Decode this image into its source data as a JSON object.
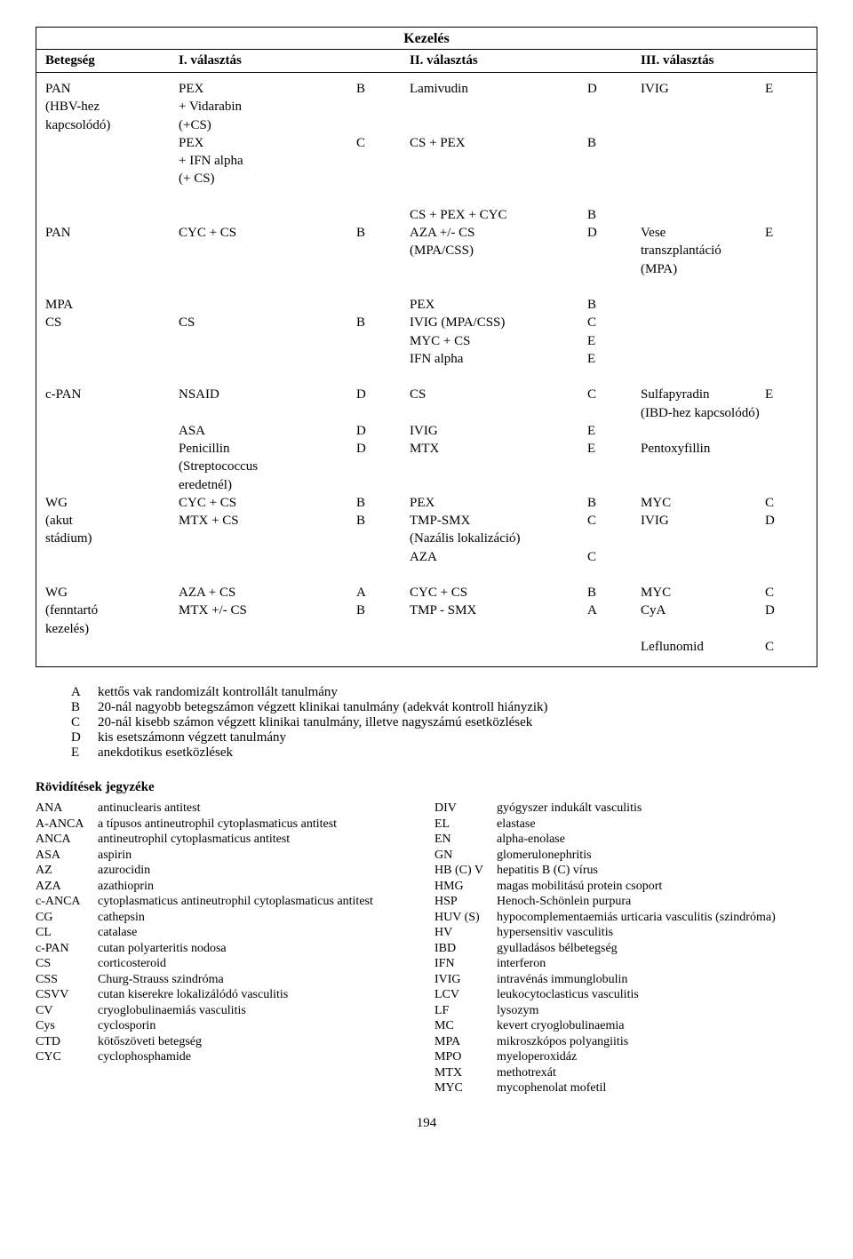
{
  "title": "Kezelés",
  "page_number": "194",
  "headers": [
    "Betegség",
    "I. választás",
    "",
    "II. választás",
    "",
    "III. választás",
    ""
  ],
  "rows": [
    [
      "PAN",
      "PEX",
      "B",
      "Lamivudin",
      "D",
      "IVIG",
      "E"
    ],
    [
      "(HBV-hez",
      "+ Vidarabin",
      "",
      "",
      "",
      "",
      ""
    ],
    [
      "kapcsolódó)",
      "(+CS)",
      "",
      "",
      "",
      "",
      ""
    ],
    [
      "",
      "PEX",
      "C",
      "CS + PEX",
      "B",
      "",
      ""
    ],
    [
      "",
      "+ IFN alpha",
      "",
      "",
      "",
      "",
      ""
    ],
    [
      "",
      "(+ CS)",
      "",
      "",
      "",
      "",
      ""
    ],
    [
      "",
      "",
      "",
      "",
      "",
      "",
      ""
    ],
    [
      "",
      "",
      "",
      "CS + PEX + CYC",
      "B",
      "",
      ""
    ],
    [
      "PAN",
      "CYC + CS",
      "B",
      "AZA +/- CS",
      "D",
      "Vese",
      "E"
    ],
    [
      "",
      "",
      "",
      "(MPA/CSS)",
      "",
      "transzplantáció",
      ""
    ],
    [
      "",
      "",
      "",
      "",
      "",
      "(MPA)",
      ""
    ],
    [
      "",
      "",
      "",
      "",
      "",
      "",
      ""
    ],
    [
      "MPA",
      "",
      "",
      "PEX",
      "B",
      "",
      ""
    ],
    [
      "CS",
      "CS",
      "B",
      "IVIG (MPA/CSS)",
      "C",
      "",
      ""
    ],
    [
      "",
      "",
      "",
      "MYC + CS",
      "E",
      "",
      ""
    ],
    [
      "",
      "",
      "",
      "IFN alpha",
      "E",
      "",
      ""
    ],
    [
      "",
      "",
      "",
      "",
      "",
      "",
      ""
    ],
    [
      "c-PAN",
      "NSAID",
      "D",
      "CS",
      "C",
      "Sulfapyradin",
      "E"
    ],
    [
      "",
      "",
      "",
      "",
      "",
      "(IBD-hez kapcsolódó)",
      ""
    ],
    [
      "",
      "ASA",
      "D",
      "IVIG",
      "E",
      "",
      ""
    ],
    [
      "",
      "Penicillin",
      "D",
      "MTX",
      "E",
      "Pentoxyfillin",
      ""
    ],
    [
      "",
      "(Streptococcus",
      "",
      "",
      "",
      "",
      ""
    ],
    [
      "",
      "eredetnél)",
      "",
      "",
      "",
      "",
      ""
    ],
    [
      "WG",
      "CYC + CS",
      "B",
      "PEX",
      "B",
      "MYC",
      "C"
    ],
    [
      "(akut",
      "MTX + CS",
      "B",
      "TMP-SMX",
      "C",
      "IVIG",
      "D"
    ],
    [
      "stádium)",
      "",
      "",
      "(Nazális lokalizáció)",
      "",
      "",
      ""
    ],
    [
      "",
      "",
      "",
      "AZA",
      "C",
      "",
      ""
    ],
    [
      "",
      "",
      "",
      "",
      "",
      "",
      ""
    ],
    [
      "WG",
      "AZA + CS",
      "A",
      "CYC + CS",
      "B",
      "MYC",
      "C"
    ],
    [
      "(fenntartó",
      "MTX +/- CS",
      "B",
      "TMP - SMX",
      "A",
      "CyA",
      "D"
    ],
    [
      "kezelés)",
      "",
      "",
      "",
      "",
      "",
      ""
    ],
    [
      "",
      "",
      "",
      "",
      "",
      "Leflunomid",
      "C"
    ]
  ],
  "legend": [
    [
      "A",
      "kettős vak randomizált kontrollált tanulmány"
    ],
    [
      "B",
      "20-nál nagyobb betegszámon végzett klinikai tanulmány (adekvát kontroll hiányzik)"
    ],
    [
      "C",
      "20-nál kisebb számon végzett klinikai tanulmány, illetve nagyszámú esetközlések"
    ],
    [
      "D",
      "kis esetszámonn végzett tanulmány"
    ],
    [
      "E",
      "anekdotikus esetközlések"
    ]
  ],
  "abbrev_title": "Rövidítések jegyzéke",
  "abbrev_left": [
    [
      "ANA",
      "antinuclearis antitest"
    ],
    [
      "A-ANCA",
      "a típusos antineutrophil cytoplasmaticus antitest"
    ],
    [
      "ANCA",
      "antineutrophil cytoplasmaticus antitest"
    ],
    [
      "ASA",
      "aspirin"
    ],
    [
      "AZ",
      "azurocidin"
    ],
    [
      "AZA",
      "azathioprin"
    ],
    [
      "c-ANCA",
      "cytoplasmaticus antineutrophil cytoplasmaticus antitest"
    ],
    [
      "CG",
      "cathepsin"
    ],
    [
      "CL",
      "catalase"
    ],
    [
      "c-PAN",
      "cutan polyarteritis nodosa"
    ],
    [
      "CS",
      "corticosteroid"
    ],
    [
      "CSS",
      "Churg-Strauss szindróma"
    ],
    [
      "CSVV",
      "cutan kiserekre lokalizálódó vasculitis"
    ],
    [
      "CV",
      "cryoglobulinaemiás vasculitis"
    ],
    [
      "Cys",
      "cyclosporin"
    ],
    [
      "CTD",
      "kötőszöveti betegség"
    ],
    [
      "CYC",
      "cyclophosphamide"
    ]
  ],
  "abbrev_right": [
    [
      "DIV",
      "gyógyszer indukált vasculitis"
    ],
    [
      "EL",
      "elastase"
    ],
    [
      "EN",
      "alpha-enolase"
    ],
    [
      "GN",
      "glomerulonephritis"
    ],
    [
      "HB (C) V",
      "hepatitis B (C) vírus"
    ],
    [
      "HMG",
      "magas mobilitású protein csoport"
    ],
    [
      "HSP",
      "Henoch-Schönlein purpura"
    ],
    [
      "HUV (S)",
      "hypocomplementaemiás urticaria vasculitis (szindróma)"
    ],
    [
      "HV",
      "hypersensitiv vasculitis"
    ],
    [
      "IBD",
      "gyulladásos bélbetegség"
    ],
    [
      "IFN",
      "interferon"
    ],
    [
      "IVIG",
      "intravénás immunglobulin"
    ],
    [
      "LCV",
      "leukocytoclasticus vasculitis"
    ],
    [
      "LF",
      "lysozym"
    ],
    [
      "MC",
      "kevert cryoglobulinaemia"
    ],
    [
      "MPA",
      "mikroszkópos polyangiitis"
    ],
    [
      "MPO",
      "myeloperoxidáz"
    ],
    [
      "MTX",
      "methotrexát"
    ],
    [
      "MYC",
      "mycophenolat mofetil"
    ]
  ]
}
